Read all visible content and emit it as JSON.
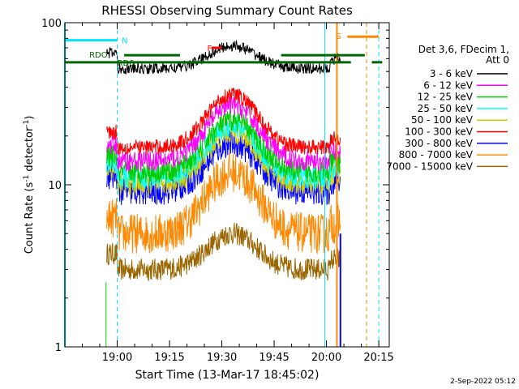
{
  "chart_data": {
    "type": "line",
    "title": "RHESSI Observing Summary Count Rates",
    "xlabel": "Start Time (13-Mar-17 18:45:02)",
    "ylabel_main": "Count Rate (s",
    "ylabel_exp": "-1",
    "ylabel_tail": " detector",
    "ylabel_exp2": "-1",
    "ylabel_close": ")",
    "y_scale": "log",
    "ylim": [
      1,
      100
    ],
    "xlim_minutes": [
      0,
      93
    ],
    "y_ticks": [
      {
        "value": 1,
        "label": "1"
      },
      {
        "value": 10,
        "label": "10"
      },
      {
        "value": 100,
        "label": "100"
      }
    ],
    "x_ticks": [
      {
        "minute": 15,
        "label": "19:00"
      },
      {
        "minute": 30,
        "label": "19:15"
      },
      {
        "minute": 45,
        "label": "19:30"
      },
      {
        "minute": 60,
        "label": "19:45"
      },
      {
        "minute": 75,
        "label": "20:00"
      },
      {
        "minute": 90,
        "label": "20:15"
      }
    ],
    "data_window_minutes": [
      12,
      79
    ],
    "series": [
      {
        "name": "3 - 6 keV",
        "color": "#000000",
        "base": 52,
        "peak": 72,
        "noise": 0.05
      },
      {
        "name": "6 - 12 keV",
        "color": "#ff00ff",
        "base": 14,
        "peak": 31,
        "noise": 0.09
      },
      {
        "name": "12 - 25 keV",
        "color": "#00cc00",
        "base": 12,
        "peak": 25,
        "noise": 0.1
      },
      {
        "name": "25 - 50 keV",
        "color": "#00ffff",
        "base": 11,
        "peak": 23,
        "noise": 0.1
      },
      {
        "name": "50 - 100 keV",
        "color": "#cccc00",
        "base": 10,
        "peak": 21,
        "noise": 0.1
      },
      {
        "name": "100 - 300 keV",
        "color": "#ff0000",
        "base": 17,
        "peak": 36,
        "noise": 0.07
      },
      {
        "name": "300 - 800 keV",
        "color": "#0000ff",
        "base": 9,
        "peak": 18,
        "noise": 0.12
      },
      {
        "name": "800 - 7000 keV",
        "color": "#ff8800",
        "base": 5,
        "peak": 12,
        "noise": 0.18
      },
      {
        "name": "7000 - 15000 keV",
        "color": "#996600",
        "base": 3,
        "peak": 5,
        "noise": 0.1
      }
    ],
    "legend_header": [
      "Det 3,6, FDecim 1,",
      "Att 0"
    ],
    "annotations": [
      {
        "label": "N",
        "color": "#00e5ff",
        "y": 78,
        "x_start": 0,
        "x_end": 15
      },
      {
        "label": "S",
        "color": "#ff8800",
        "y": 82,
        "x_start": 81,
        "x_end": 90
      },
      {
        "label": "F",
        "color": "#ff0000",
        "y": 70,
        "x_start": 42,
        "x_end": 45
      },
      {
        "label": "RDO",
        "color": "#006600",
        "y": 63,
        "x_start": 0,
        "x_end": 93
      },
      {
        "label": "RD6",
        "color": "#006600",
        "y": 57,
        "x_start": 0,
        "x_end": 93
      }
    ],
    "legend_position": "right"
  },
  "footer": {
    "timestamp": "2-Sep-2022 05:12"
  }
}
